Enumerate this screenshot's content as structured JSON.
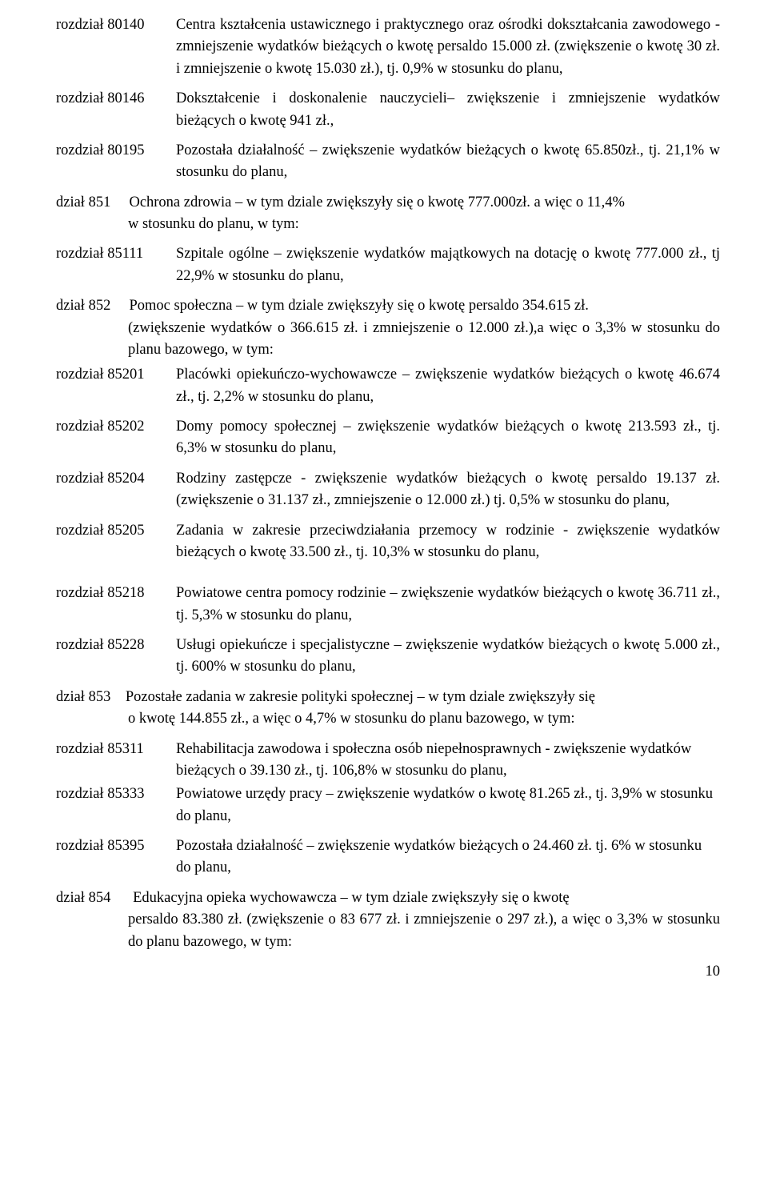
{
  "items": {
    "r80140_label": "rozdział 80140",
    "r80140_desc": "Centra kształcenia ustawicznego i praktycznego oraz ośrodki dokształcania zawodowego - zmniejszenie wydatków bieżących o kwotę persaldo 15.000 zł. (zwiększenie o kwotę 30 zł. i zmniejszenie o kwotę 15.030 zł.), tj. 0,9% w stosunku do planu,",
    "r80146_label": "rozdział 80146",
    "r80146_desc": "Dokształcenie i doskonalenie nauczycieli– zwiększenie i zmniejszenie wydatków bieżących o kwotę 941 zł.,",
    "r80195_label": "rozdział 80195",
    "r80195_desc": "Pozostała działalność – zwiększenie wydatków bieżących o kwotę 65.850zł., tj. 21,1% w stosunku do planu,",
    "d851_label": "dział 851",
    "d851_text": "Ochrona zdrowia – w  tym dziale zwiększyły się o kwotę 777.000zł. a więc o 11,4%",
    "d851_cont": "w stosunku do planu, w tym:",
    "r85111_label": "rozdział 85111",
    "r85111_desc": "Szpitale ogólne – zwiększenie wydatków majątkowych na dotację o kwotę 777.000 zł., tj 22,9% w stosunku do planu,",
    "d852_label": "dział 852",
    "d852_text": "Pomoc  społeczna  –  w  tym  dziale   zwiększyły   się  o kwotę persaldo 354.615 zł.",
    "d852_cont": "(zwiększenie wydatków o 366.615 zł. i zmniejszenie o 12.000 zł.),a więc o 3,3% w stosunku do planu bazowego, w tym:",
    "r85201_label": "rozdział 85201",
    "r85201_desc": "Placówki opiekuńczo-wychowawcze – zwiększenie wydatków bieżących o kwotę 46.674 zł., tj. 2,2% w stosunku do planu,",
    "r85202_label": "rozdział 85202",
    "r85202_desc": "Domy pomocy społecznej – zwiększenie wydatków bieżących o kwotę 213.593 zł., tj. 6,3% w stosunku do planu,",
    "r85204_label": "rozdział 85204",
    "r85204_desc": "Rodziny zastępcze - zwiększenie wydatków bieżących o kwotę persaldo 19.137 zł. (zwiększenie o 31.137 zł., zmniejszenie o 12.000 zł.) tj. 0,5% w stosunku do planu,",
    "r85205_label": "rozdział 85205",
    "r85205_desc": "Zadania w zakresie przeciwdziałania przemocy w rodzinie - zwiększenie wydatków bieżących o kwotę 33.500 zł., tj. 10,3% w stosunku do planu,",
    "r85218_label": "rozdział 85218",
    "r85218_desc": "Powiatowe centra pomocy rodzinie – zwiększenie wydatków bieżących o kwotę 36.711 zł., tj. 5,3% w stosunku do planu,",
    "r85228_label": "rozdział 85228",
    "r85228_desc": "Usługi opiekuńcze i specjalistyczne –  zwiększenie wydatków bieżących o kwotę 5.000 zł., tj. 600% w stosunku do planu,",
    "d853_label": "dział 853",
    "d853_text": "Pozostałe  zadania  w  zakresie   polityki   społecznej – w  tym  dziale zwiększyły się",
    "d853_cont": "o kwotę 144.855 zł.,  a więc o 4,7% w stosunku do planu bazowego, w tym:",
    "r85311_label": "rozdział 85311",
    "r85311_desc": "Rehabilitacja zawodowa i społeczna osób niepełnosprawnych    - zwiększenie  wydatków bieżących o 39.130 zł., tj. 106,8% w stosunku do planu,",
    "r85333_label": "rozdział 85333",
    "r85333_desc": "Powiatowe urzędy pracy – zwiększenie wydatków o kwotę 81.265 zł., tj. 3,9% w stosunku do planu,",
    "r85395_label": "rozdział 85395",
    "r85395_desc": "Pozostała działalność – zwiększenie wydatków bieżących o 24.460 zł. tj. 6%  w stosunku do planu,",
    "d854_label": "dział 854",
    "d854_text": "Edukacyjna  opieka  wychowawcza  –  w   tym  dziale  zwiększyły się o kwotę",
    "d854_cont": "persaldo 83.380 zł. (zwiększenie o 83 677 zł. i zmniejszenie o 297 zł.), a więc o 3,3% w stosunku do planu bazowego, w tym:"
  },
  "page_number": "10"
}
